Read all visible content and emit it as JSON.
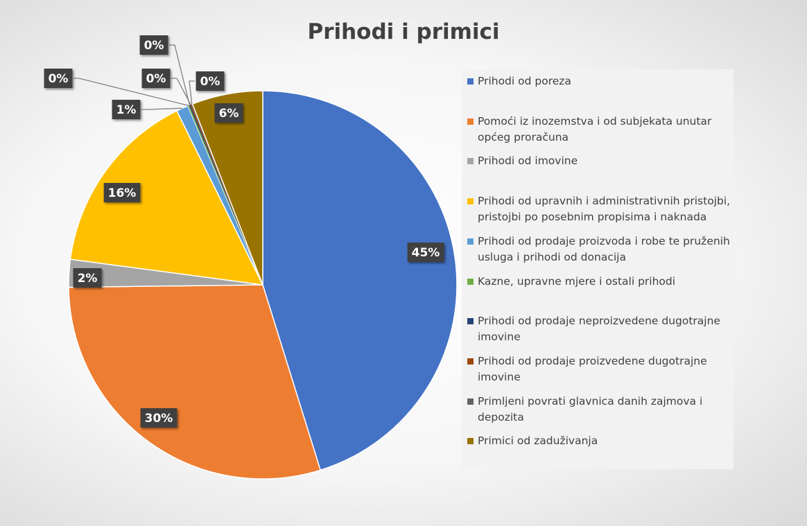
{
  "chart_data": {
    "type": "pie",
    "title": "Prihodi i primici",
    "categories": [
      "Prihodi od poreza",
      "Pomoći iz inozemstva i od subjekata unutar općeg proračuna",
      "Prihodi od imovine",
      "Prihodi od upravnih i administrativnih pristojbi, pristojbi  po posebnim propisima i naknada",
      "Prihodi od prodaje proizvoda i robe te pruženih usluga i prihodi od donacija",
      "Kazne, upravne mjere i ostali prihodi",
      "Prihodi od prodaje neproizvedene dugotrajne imovine",
      "Prihodi od prodaje proizvedene dugotrajne imovine",
      "Primljeni povrati glavnica danih zajmova i depozita",
      "Primici od zaduživanja"
    ],
    "values": [
      45.2,
      29.6,
      2.3,
      15.6,
      1.0,
      0.1,
      0.1,
      0.1,
      0.1,
      5.9
    ],
    "value_labels": [
      "45%",
      "30%",
      "2%",
      "16%",
      "1%",
      "0%",
      "0%",
      "0%",
      "0%",
      "6%"
    ],
    "colors": [
      "#4472c4",
      "#ed7d31",
      "#a5a5a5",
      "#ffc000",
      "#5b9bd5",
      "#70ad47",
      "#264478",
      "#9e480e",
      "#636363",
      "#997300"
    ],
    "legend": "right"
  }
}
